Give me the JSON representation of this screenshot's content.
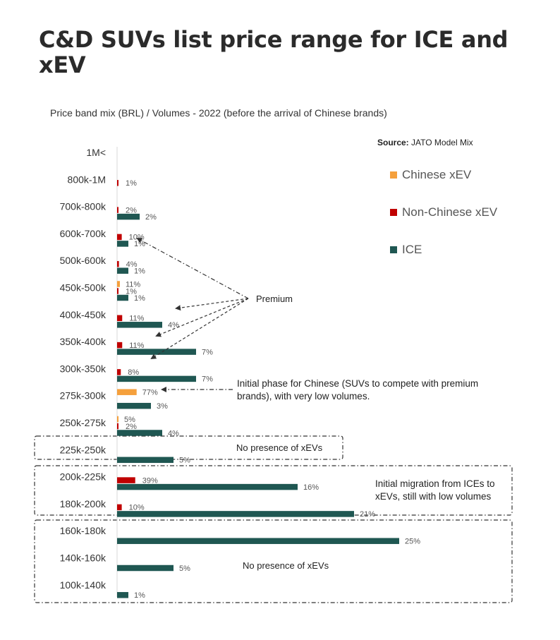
{
  "title": "C&D SUVs list price range for ICE and xEV",
  "chart_data": {
    "type": "bar",
    "orientation": "horizontal",
    "title": "C&D SUVs list price range for ICE and xEV",
    "subtitle": "Price band mix (BRL) / Volumes - 2022 (before the arrival of Chinese brands)",
    "source_label": "Source:",
    "source_value": "JATO Model Mix",
    "categories": [
      "1M<",
      "800k-1M",
      "700k-800k",
      "600k-700k",
      "500k-600k",
      "450k-500k",
      "400k-450k",
      "350k-400k",
      "300k-350k",
      "275k-300k",
      "250k-275k",
      "225k-250k",
      "200k-225k",
      "180k-200k",
      "160k-180k",
      "140k-160k",
      "100k-140k"
    ],
    "series": [
      {
        "name": "Chinese xEV",
        "color": "#f5a03c",
        "values": [
          null,
          null,
          null,
          null,
          null,
          11,
          null,
          null,
          null,
          77,
          5,
          null,
          null,
          null,
          null,
          null,
          null
        ]
      },
      {
        "name": "Non-Chinese xEV",
        "color": "#c00000",
        "values": [
          null,
          1,
          2,
          10,
          4,
          1,
          11,
          11,
          8,
          null,
          2,
          null,
          39,
          10,
          null,
          null,
          null
        ]
      },
      {
        "name": "ICE",
        "color": "#1f5752",
        "values": [
          null,
          null,
          2,
          1,
          1,
          1,
          4,
          7,
          7,
          3,
          4,
          5,
          16,
          21,
          25,
          5,
          1
        ]
      }
    ],
    "legend_position": "top-right",
    "annotations": {
      "premium": "Premium",
      "chinese_phase": "Initial phase for Chinese (SUVs to compete with premium brands), with very low volumes.",
      "no_xev_1": "No presence of xEVs",
      "migration": "Initial migration from ICEs to xEVs, still with low volumes",
      "no_xev_2": "No presence of xEVs"
    }
  }
}
